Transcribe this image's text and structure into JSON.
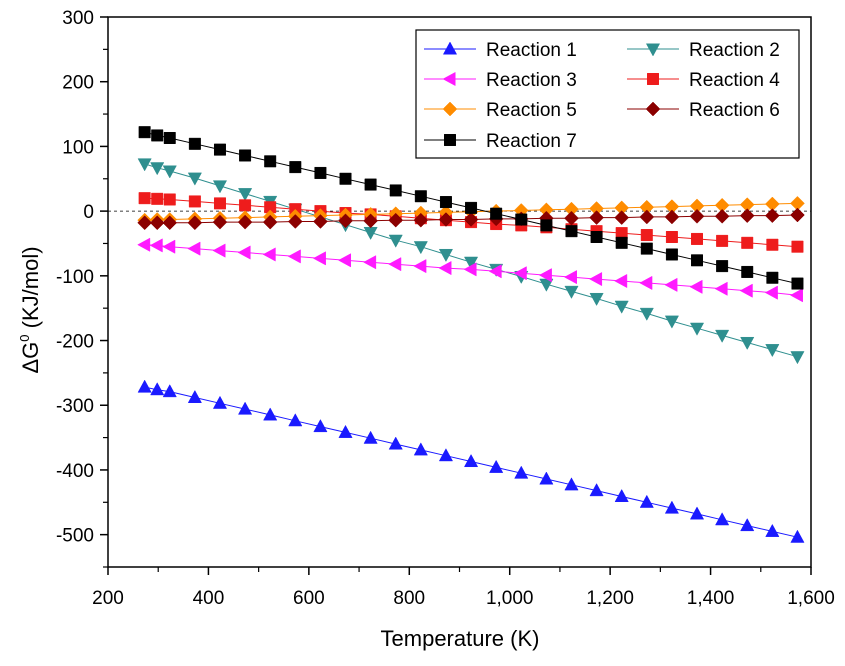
{
  "chart_data": {
    "type": "line",
    "title": "",
    "xlabel": "Temperature (K)",
    "ylabel_main": "ΔG",
    "ylabel_sup": "0",
    "ylabel_rest": " (KJ/mol)",
    "xlim": [
      200,
      1600
    ],
    "ylim": [
      -550,
      300
    ],
    "x_ticks": [
      200,
      400,
      600,
      800,
      1000,
      1200,
      1400,
      1600
    ],
    "x_tick_labels": [
      "200",
      "400",
      "600",
      "800",
      "1,000",
      "1,200",
      "1,400",
      "1,600"
    ],
    "y_ticks": [
      -500,
      -400,
      -300,
      -200,
      -100,
      0,
      100,
      200,
      300
    ],
    "y_tick_labels": [
      "-500",
      "-400",
      "-300",
      "-200",
      "-100",
      "0",
      "100",
      "200",
      "300"
    ],
    "zero_reference_line": true,
    "legend_position": "top-right",
    "x": [
      273,
      298,
      323,
      373,
      423,
      473,
      523,
      573,
      623,
      673,
      723,
      773,
      823,
      873,
      923,
      973,
      1023,
      1073,
      1123,
      1173,
      1223,
      1273,
      1323,
      1373,
      1423,
      1473,
      1523,
      1573
    ],
    "series": [
      {
        "name": "Reaction 1",
        "marker": "triangle-up",
        "color": "#1a1aff",
        "values": [
          -272,
          -276,
          -279,
          -288,
          -297,
          -306,
          -315,
          -324,
          -333,
          -342,
          -351,
          -360,
          -369,
          -378,
          -387,
          -396,
          -405,
          -414,
          -423,
          -432,
          -441,
          -450,
          -459,
          -468,
          -477,
          -486,
          -495,
          -504
        ]
      },
      {
        "name": "Reaction 2",
        "marker": "triangle-down",
        "color": "#2f8f8f",
        "values": [
          73,
          67,
          62,
          51,
          39,
          27,
          15,
          3,
          -9,
          -21,
          -33,
          -45,
          -55,
          -67,
          -79,
          -90,
          -101,
          -113,
          -124,
          -135,
          -147,
          -158,
          -170,
          -181,
          -192,
          -203,
          -214,
          -225
        ]
      },
      {
        "name": "Reaction 3",
        "marker": "triangle-left",
        "color": "#ff1aff",
        "values": [
          -52,
          -53,
          -55,
          -58,
          -61,
          -64,
          -67,
          -70,
          -73,
          -76,
          -79,
          -82,
          -85,
          -88,
          -90,
          -93,
          -96,
          -99,
          -102,
          -105,
          -108,
          -111,
          -114,
          -117,
          -120,
          -123,
          -126,
          -130
        ]
      },
      {
        "name": "Reaction 4",
        "marker": "square",
        "color": "#ee1c1c",
        "values": [
          20,
          19,
          18,
          15,
          12,
          9,
          6,
          3,
          0,
          -3,
          -5,
          -8,
          -11,
          -14,
          -17,
          -20,
          -22,
          -25,
          -28,
          -31,
          -34,
          -37,
          -40,
          -43,
          -46,
          -49,
          -52,
          -55
        ]
      },
      {
        "name": "Reaction 5",
        "marker": "diamond",
        "color": "#ff8c00",
        "values": [
          -14,
          -13,
          -13,
          -12,
          -11,
          -10,
          -9,
          -8,
          -7,
          -6,
          -5,
          -4,
          -3,
          -2,
          -1,
          0,
          1,
          2,
          3,
          4,
          5,
          6,
          7,
          8,
          9,
          10,
          11,
          12
        ]
      },
      {
        "name": "Reaction 6",
        "marker": "diamond",
        "color": "#8b0000",
        "values": [
          -18,
          -18,
          -18,
          -18,
          -17,
          -17,
          -17,
          -16,
          -16,
          -15,
          -15,
          -14,
          -14,
          -13,
          -13,
          -12,
          -12,
          -11,
          -11,
          -10,
          -10,
          -9,
          -9,
          -8,
          -8,
          -7,
          -7,
          -6
        ]
      },
      {
        "name": "Reaction 7",
        "marker": "square",
        "color": "#000000",
        "values": [
          122,
          117,
          113,
          104,
          95,
          86,
          77,
          68,
          59,
          50,
          41,
          32,
          23,
          14,
          5,
          -4,
          -13,
          -22,
          -31,
          -40,
          -49,
          -58,
          -67,
          -76,
          -85,
          -94,
          -103,
          -112
        ]
      }
    ]
  }
}
